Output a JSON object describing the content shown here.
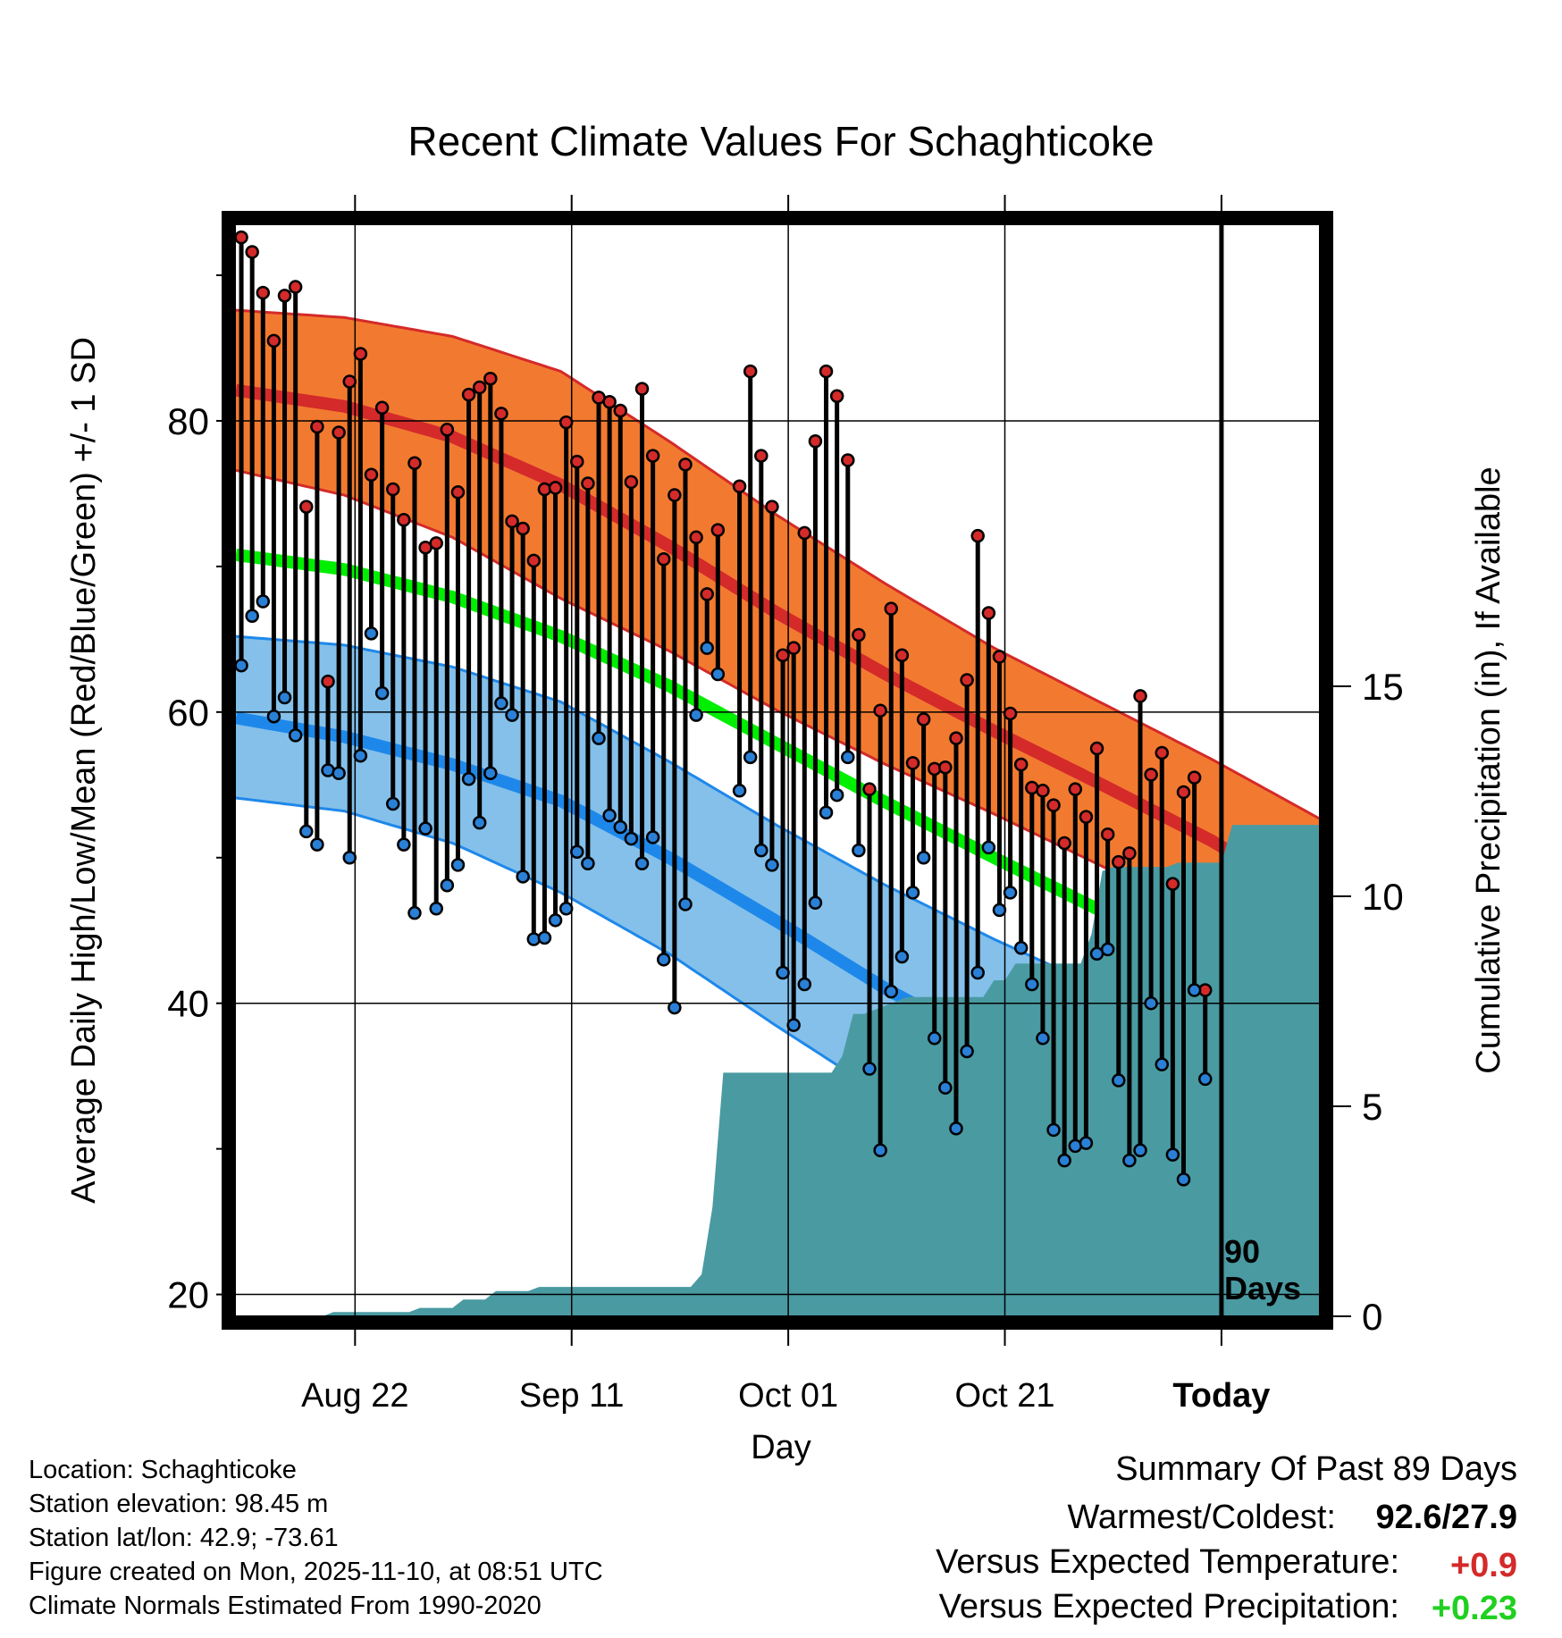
{
  "chart_data": {
    "type": "line",
    "title": "Recent Climate Values For Schaghticoke",
    "xlabel": "Day",
    "ylabel": "Average Daily High/Low/Mean (Red/Blue/Green) +/- 1 SD",
    "y2label": "Cumulative Precipitation (in), If Available",
    "x_ticks": [
      {
        "day": 11,
        "label": "Aug 22"
      },
      {
        "day": 31,
        "label": "Sep 11"
      },
      {
        "day": 51,
        "label": "Oct 01"
      },
      {
        "day": 71,
        "label": "Oct 21"
      },
      {
        "day": 91,
        "label": "Today"
      }
    ],
    "xlim": [
      0,
      100
    ],
    "ylim": [
      18.5,
      93.5
    ],
    "y_ticks": [
      20,
      40,
      60,
      80
    ],
    "y_minor_ticks": [
      30,
      50,
      70,
      90
    ],
    "y2lim": [
      0,
      26
    ],
    "y2_ticks": [
      0,
      5,
      10,
      15
    ],
    "today_day": 91,
    "today_annotation": [
      "90",
      "Days"
    ],
    "normal_high": {
      "days": [
        0,
        10,
        20,
        30,
        40,
        50,
        60,
        70,
        80,
        90,
        100
      ],
      "mean": [
        82.1,
        81.0,
        78.9,
        75.6,
        71.4,
        66.8,
        62.6,
        58.7,
        55.0,
        51.2,
        46.8
      ],
      "upper": [
        87.6,
        87.1,
        85.8,
        83.4,
        78.6,
        73.5,
        68.8,
        64.4,
        60.6,
        56.8,
        52.7
      ],
      "lower": [
        76.6,
        74.9,
        72.0,
        67.8,
        64.2,
        60.1,
        56.4,
        53.0,
        49.4,
        45.6,
        40.9
      ]
    },
    "normal_mean": {
      "days": [
        0,
        10,
        20,
        30,
        40,
        50,
        60,
        70,
        80,
        90,
        100
      ],
      "values": [
        70.8,
        69.8,
        67.9,
        65.2,
        61.8,
        57.8,
        53.8,
        50.0,
        46.3,
        42.2,
        38.0
      ]
    },
    "normal_low": {
      "days": [
        0,
        10,
        20,
        30,
        40,
        50,
        60,
        70,
        80,
        90,
        100
      ],
      "mean": [
        59.6,
        58.3,
        56.4,
        53.9,
        50.0,
        45.6,
        41.0,
        37.0,
        33.0,
        29.4,
        26.4
      ],
      "upper": [
        65.2,
        64.6,
        63.1,
        60.7,
        56.6,
        52.2,
        48.1,
        44.4,
        41.0,
        38.6,
        36.2
      ],
      "lower": [
        54.1,
        53.2,
        51.0,
        47.6,
        43.4,
        38.4,
        33.6,
        29.7,
        25.0,
        20.3,
        16.5
      ]
    },
    "series": [
      {
        "name": "High",
        "color": "#d42a2a",
        "values": [
          92.6,
          91.6,
          88.8,
          85.5,
          88.6,
          89.2,
          74.1,
          79.6,
          62.1,
          79.2,
          82.7,
          84.6,
          76.3,
          80.9,
          75.3,
          73.2,
          77.1,
          71.3,
          71.6,
          79.4,
          75.1,
          81.8,
          82.3,
          82.9,
          80.5,
          73.1,
          72.6,
          70.4,
          75.3,
          75.4,
          79.9,
          77.2,
          75.7,
          81.6,
          81.3,
          80.7,
          75.8,
          82.2,
          77.6,
          70.5,
          74.9,
          77.0,
          72.0,
          68.1,
          72.5,
          null,
          75.5,
          83.4,
          77.6,
          74.1,
          63.9,
          64.4,
          72.3,
          78.6,
          83.4,
          81.7,
          77.3,
          65.3,
          54.7,
          60.1,
          67.1,
          63.9,
          56.5,
          59.5,
          56.1,
          56.2,
          58.2,
          62.2,
          72.1,
          66.8,
          63.8,
          59.9,
          56.4,
          54.8,
          54.6,
          53.6,
          51.0,
          54.7,
          52.8,
          57.5,
          51.6,
          49.7,
          50.3,
          61.1,
          55.7,
          57.2,
          48.2,
          54.5,
          55.5,
          40.9,
          null
        ]
      },
      {
        "name": "Low",
        "color": "#2a80d6",
        "values": [
          63.2,
          66.6,
          67.6,
          59.7,
          61.0,
          58.4,
          51.8,
          50.9,
          56.0,
          55.8,
          50.0,
          57.0,
          65.4,
          61.3,
          53.7,
          50.9,
          46.2,
          52.0,
          46.5,
          48.1,
          49.5,
          55.4,
          52.4,
          55.8,
          60.6,
          59.8,
          48.7,
          44.4,
          44.5,
          45.7,
          46.5,
          50.4,
          49.6,
          58.2,
          52.9,
          52.1,
          51.3,
          49.6,
          51.4,
          43.0,
          39.7,
          46.8,
          59.8,
          64.4,
          62.6,
          null,
          54.6,
          56.9,
          50.5,
          49.5,
          42.1,
          38.5,
          41.3,
          46.9,
          53.1,
          54.3,
          56.9,
          50.5,
          35.5,
          29.9,
          40.8,
          43.2,
          47.6,
          50.0,
          37.6,
          34.2,
          31.4,
          36.7,
          42.1,
          50.7,
          46.4,
          47.6,
          43.8,
          41.3,
          37.6,
          31.3,
          29.2,
          30.2,
          30.4,
          43.4,
          43.7,
          34.7,
          29.2,
          29.9,
          40.0,
          35.8,
          29.6,
          27.9,
          40.9,
          34.8,
          null
        ]
      }
    ],
    "precip": {
      "days": [
        0,
        8,
        9,
        16,
        17,
        20,
        21,
        23,
        24,
        27,
        28,
        42,
        43,
        44,
        45,
        55,
        56,
        57,
        58,
        62,
        63,
        69,
        70,
        71,
        72,
        78,
        79,
        80,
        81,
        86,
        87,
        91,
        92,
        100
      ],
      "values": [
        0,
        0,
        0.1,
        0.1,
        0.2,
        0.2,
        0.4,
        0.4,
        0.6,
        0.6,
        0.7,
        0.7,
        1.0,
        2.6,
        5.8,
        5.8,
        6.2,
        7.2,
        7.2,
        7.6,
        7.6,
        7.6,
        8.0,
        8.0,
        8.4,
        8.4,
        9.1,
        10.6,
        10.7,
        10.7,
        10.8,
        10.8,
        11.7,
        11.7
      ]
    }
  },
  "info": {
    "location": "Location: Schaghticoke",
    "elevation": "Station elevation: 98.45 m",
    "latlon": "Station lat/lon: 42.9; -73.61",
    "created": "Figure created on Mon, 2025-11-10, at 08:51 UTC",
    "normals": "Climate Normals Estimated From 1990-2020"
  },
  "summary": {
    "title": "Summary Of Past 89 Days",
    "warm_cold_label": "Warmest/Coldest:",
    "warm_cold_value": "92.6/27.9",
    "temp_label": "Versus Expected Temperature:",
    "temp_value": "+0.9",
    "precip_label": "Versus Expected Precipitation:",
    "precip_value": "+0.23"
  },
  "colors": {
    "high_band": "#f27a30",
    "high_edge": "#d42a2a",
    "high_mean": "#d42a2a",
    "mean_line": "#00ee00",
    "low_band": "#84c0ea",
    "low_edge": "#1e88ea",
    "low_mean": "#1e88ea",
    "precip": "#4a9aa2",
    "temp_diff": "#d42a2a",
    "precip_diff": "#20d020"
  }
}
